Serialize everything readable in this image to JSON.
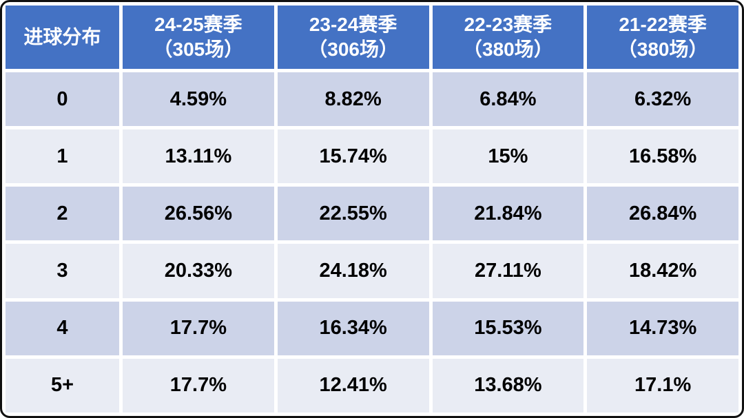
{
  "chart_data": {
    "type": "table",
    "corner_label": "进球分布",
    "columns": [
      "进球分布",
      "24-25赛季（305场）",
      "23-24赛季（306场）",
      "22-23赛季（380场）",
      "21-22赛季（380场）"
    ],
    "season_headers": [
      {
        "season": "24-25赛季",
        "matches": "（305场）"
      },
      {
        "season": "23-24赛季",
        "matches": "（306场）"
      },
      {
        "season": "22-23赛季",
        "matches": "（380场）"
      },
      {
        "season": "21-22赛季",
        "matches": "（380场）"
      }
    ],
    "rows": [
      {
        "label": "0",
        "values": [
          "4.59%",
          "8.82%",
          "6.84%",
          "6.32%"
        ]
      },
      {
        "label": "1",
        "values": [
          "13.11%",
          "15.74%",
          "15%",
          "16.58%"
        ]
      },
      {
        "label": "2",
        "values": [
          "26.56%",
          "22.55%",
          "21.84%",
          "26.84%"
        ]
      },
      {
        "label": "3",
        "values": [
          "20.33%",
          "24.18%",
          "27.11%",
          "18.42%"
        ]
      },
      {
        "label": "4",
        "values": [
          "17.7%",
          "16.34%",
          "15.53%",
          "14.73%"
        ]
      },
      {
        "label": "5+",
        "values": [
          "17.7%",
          "12.41%",
          "13.68%",
          "17.1%"
        ]
      }
    ],
    "colors": {
      "header_bg": "#4472c4",
      "header_text": "#ffffff",
      "row_band_dark": "#ccd3e8",
      "row_band_light": "#e9ecf4",
      "body_text": "#000000",
      "grid": "#ffffff",
      "frame_border": "#101010"
    },
    "layout": {
      "legend": "none",
      "grid": "white cell separators",
      "banding": "alternating rows"
    }
  }
}
